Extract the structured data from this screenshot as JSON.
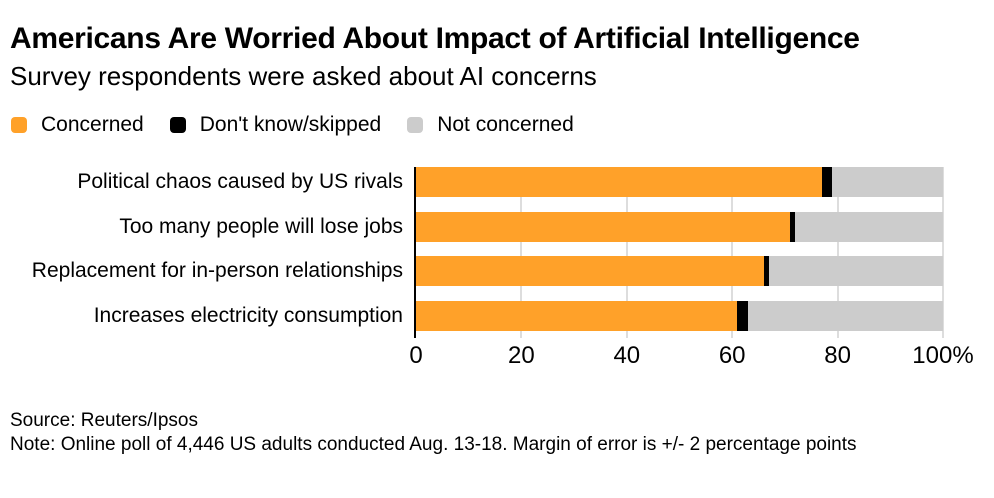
{
  "header": {
    "title": "Americans Are Worried About Impact of Artificial Intelligence",
    "subtitle": "Survey respondents were asked about AI concerns"
  },
  "footer": {
    "source": "Source: Reuters/Ipsos",
    "note": "Note: Online poll of 4,446 US adults conducted Aug. 13-18. Margin of error is +/- 2 percentage points"
  },
  "colors": {
    "concerned": "#FFA129",
    "dont_know": "#000000",
    "not_concerned": "#CCCCCC",
    "gridline": "#DDDDDD",
    "axis_line": "#000000",
    "background": "#FFFFFF",
    "text": "#000000"
  },
  "chart_data": {
    "type": "bar",
    "orientation": "horizontal",
    "stacked": true,
    "title": "Americans Are Worried About Impact of Artificial Intelligence",
    "subtitle": "Survey respondents were asked about AI concerns",
    "xlabel": "",
    "ylabel": "",
    "xlim": [
      0,
      100
    ],
    "grid": true,
    "legend_position": "top",
    "legend": [
      {
        "label": "Concerned",
        "color": "#FFA129"
      },
      {
        "label": "Don't know/skipped",
        "color": "#000000"
      },
      {
        "label": "Not concerned",
        "color": "#CCCCCC"
      }
    ],
    "categories": [
      "Political chaos caused by US rivals",
      "Too many people will lose jobs",
      "Replacement for in-person relationships",
      "Increases electricity consumption"
    ],
    "series": [
      {
        "name": "Concerned",
        "color": "#FFA129",
        "values": [
          77,
          71,
          66,
          61
        ]
      },
      {
        "name": "Don't know/skipped",
        "color": "#000000",
        "values": [
          2,
          1,
          1,
          2
        ]
      },
      {
        "name": "Not concerned",
        "color": "#CCCCCC",
        "values": [
          21,
          28,
          33,
          37
        ]
      }
    ],
    "x_ticks": [
      {
        "label": "0",
        "value": 0
      },
      {
        "label": "20",
        "value": 20
      },
      {
        "label": "40",
        "value": 40
      },
      {
        "label": "60",
        "value": 60
      },
      {
        "label": "80",
        "value": 80
      },
      {
        "label": "100%",
        "value": 100
      }
    ],
    "source": "Source: Reuters/Ipsos",
    "note": "Note: Online poll of 4,446 US adults conducted Aug. 13-18. Margin of error is +/- 2 percentage points"
  }
}
